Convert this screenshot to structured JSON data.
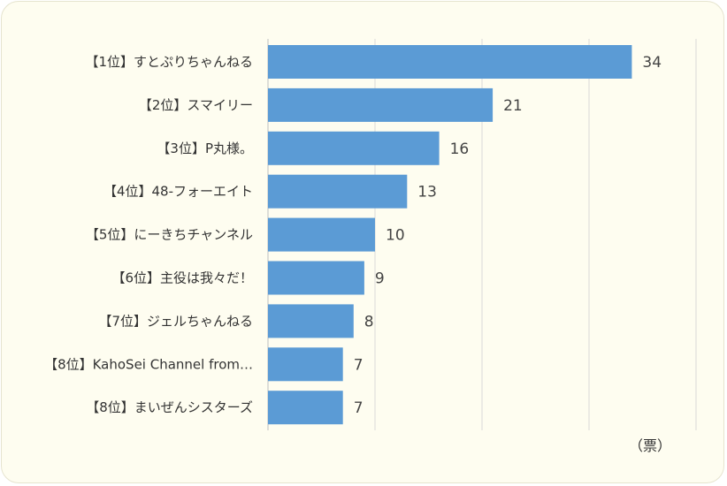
{
  "chart_data": {
    "type": "bar",
    "orientation": "horizontal",
    "categories": [
      "【1位】すとぷりちゃんねる",
      "【2位】スマイリー",
      "【3位】P丸様。",
      "【4位】48-フォーエイト",
      "【5位】にーきちチャンネル",
      "【6位】主役は我々だ！",
      "【7位】ジェルちゃんねる",
      "【8位】KahoSei Channel from…",
      "【8位】まいぜんシスターズ"
    ],
    "values": [
      34,
      21,
      16,
      13,
      10,
      9,
      8,
      7,
      7
    ],
    "unit_label": "（票）",
    "xlim": [
      0,
      40
    ],
    "grid": true,
    "colors": {
      "bar": "#5b9bd5",
      "background": "#fefdf0",
      "grid": "#d9d9d9"
    }
  }
}
